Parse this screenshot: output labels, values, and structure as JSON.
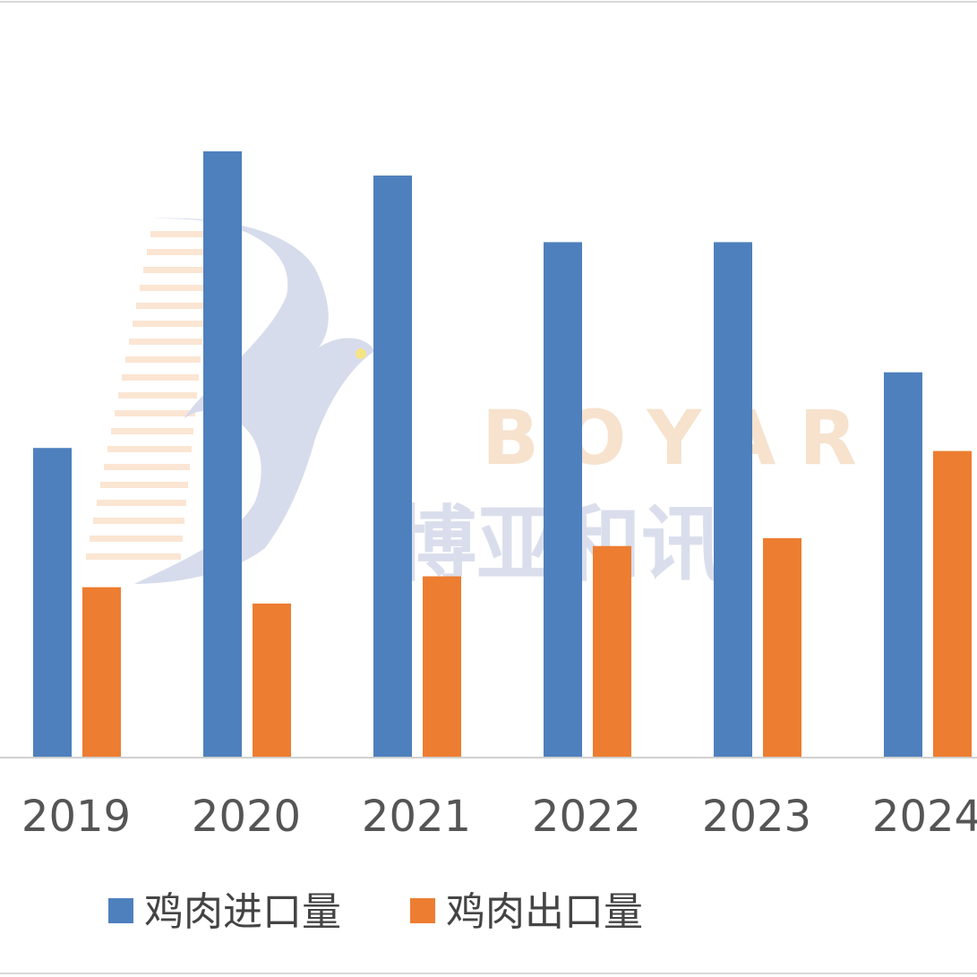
{
  "chart_data": {
    "type": "bar",
    "categories": [
      "2019",
      "2020",
      "2021",
      "2022",
      "2023",
      "2024"
    ],
    "series": [
      {
        "name": "鸡肉进口量",
        "color": "#4e80bd",
        "values": [
          0.51,
          1.0,
          0.96,
          0.85,
          0.85,
          0.635
        ]
      },
      {
        "name": "鸡肉出口量",
        "color": "#ed7d31",
        "values": [
          0.28,
          0.253,
          0.298,
          0.348,
          0.361,
          0.505
        ]
      }
    ],
    "ylim": [
      0,
      1.25
    ],
    "grid": false,
    "legend": "bottom-center"
  },
  "watermark": {
    "letters": "BOYAR",
    "chinese": "博亚和讯"
  }
}
